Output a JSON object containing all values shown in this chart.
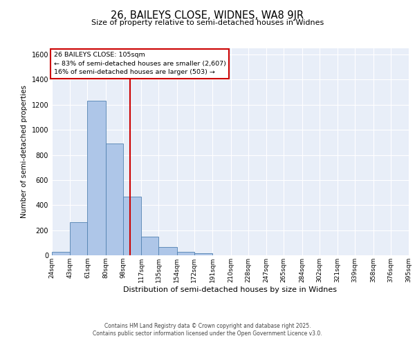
{
  "title": "26, BAILEYS CLOSE, WIDNES, WA8 9JR",
  "subtitle": "Size of property relative to semi-detached houses in Widnes",
  "xlabel": "Distribution of semi-detached houses by size in Widnes",
  "ylabel": "Number of semi-detached properties",
  "bin_labels": [
    "24sqm",
    "43sqm",
    "61sqm",
    "80sqm",
    "98sqm",
    "117sqm",
    "135sqm",
    "154sqm",
    "172sqm",
    "191sqm",
    "210sqm",
    "228sqm",
    "247sqm",
    "265sqm",
    "284sqm",
    "302sqm",
    "321sqm",
    "339sqm",
    "358sqm",
    "376sqm",
    "395sqm"
  ],
  "bin_edges": [
    24,
    43,
    61,
    80,
    98,
    117,
    135,
    154,
    172,
    191,
    210,
    228,
    247,
    265,
    284,
    302,
    321,
    339,
    358,
    376,
    395
  ],
  "bar_heights": [
    27,
    262,
    1232,
    893,
    470,
    150,
    65,
    28,
    15,
    0,
    0,
    0,
    0,
    0,
    0,
    0,
    0,
    0,
    0,
    0
  ],
  "bar_color": "#aec6e8",
  "bar_edge_color": "#5080b0",
  "property_value": 105,
  "red_line_x": 105,
  "annotation_line1": "26 BAILEYS CLOSE: 105sqm",
  "annotation_line2": "← 83% of semi-detached houses are smaller (2,607)",
  "annotation_line3": "16% of semi-detached houses are larger (503) →",
  "annotation_box_edge": "#cc0000",
  "ylim": [
    0,
    1650
  ],
  "yticks": [
    0,
    200,
    400,
    600,
    800,
    1000,
    1200,
    1400,
    1600
  ],
  "background_color": "#e8eef8",
  "footer_line1": "Contains HM Land Registry data © Crown copyright and database right 2025.",
  "footer_line2": "Contains public sector information licensed under the Open Government Licence v3.0."
}
